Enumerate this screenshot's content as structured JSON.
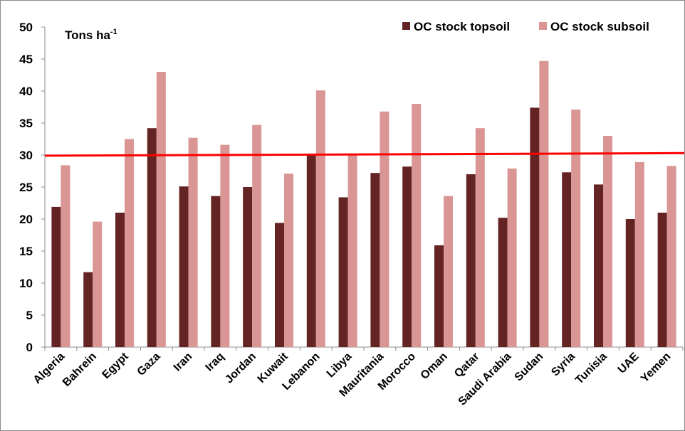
{
  "chart_data": {
    "type": "bar",
    "unit_label": {
      "base": "Tons ha",
      "sup": "-1"
    },
    "categories": [
      "Algeria",
      "Bahrein",
      "Egypt",
      "Gaza",
      "Iran",
      "Iraq",
      "Jordan",
      "Kuwait",
      "Lebanon",
      "Libya",
      "Mauritania",
      "Morocco",
      "Oman",
      "Qatar",
      "Saudi Arabia",
      "Sudan",
      "Syria",
      "Tunisia",
      "UAE",
      "Yemen"
    ],
    "series": [
      {
        "name": "OC stock topsoil",
        "color": "#632423",
        "values": [
          21.9,
          11.7,
          21.0,
          34.2,
          25.1,
          23.6,
          25.0,
          19.4,
          30.0,
          23.4,
          27.2,
          28.2,
          15.9,
          27.0,
          20.2,
          37.4,
          27.3,
          25.4,
          20.0,
          21.0
        ]
      },
      {
        "name": "OC stock subsoil",
        "color": "#d99694",
        "values": [
          28.4,
          19.6,
          32.5,
          43.0,
          32.7,
          31.6,
          34.7,
          27.1,
          40.1,
          30.0,
          36.8,
          38.0,
          23.6,
          34.2,
          27.9,
          44.7,
          37.1,
          33.0,
          28.9,
          28.3
        ]
      }
    ],
    "ylim": [
      0,
      50
    ],
    "yticks": [
      0,
      5,
      10,
      15,
      20,
      25,
      30,
      35,
      40,
      45,
      50
    ],
    "grid": false,
    "legend_position": "top-right",
    "reference_line": {
      "color": "#ff0000",
      "y_start": 29.9,
      "y_end": 30.3
    }
  }
}
